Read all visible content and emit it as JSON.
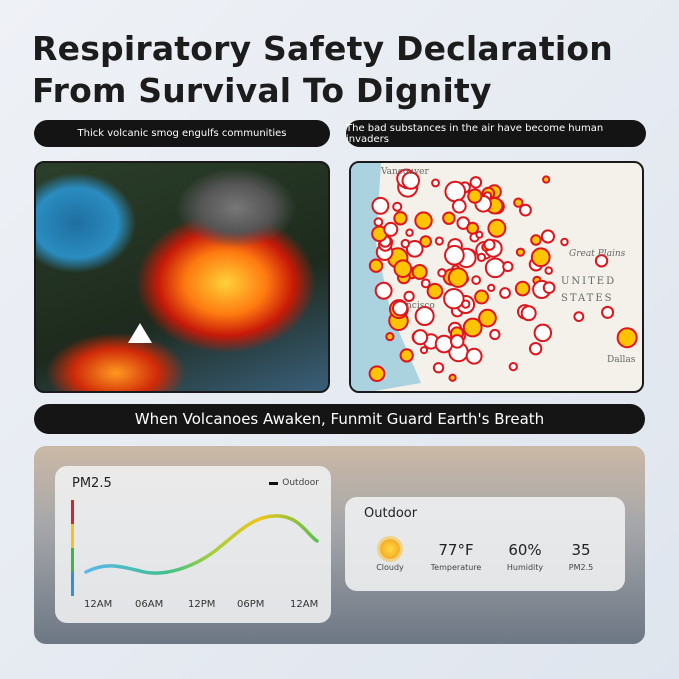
{
  "title": {
    "line1": "Respiratory Safety Declaration",
    "line2": "From Survival To Dignity"
  },
  "captions": {
    "left": "Thick volcanic smog engulfs communities",
    "right": "The bad substances in the air have become human invaders"
  },
  "map": {
    "labels": {
      "vancouver": "Vancouver",
      "great_plains": "Great Plains",
      "united": "UNITED",
      "states": "STATES",
      "francisco": "ncisco",
      "dallas": "Dallas"
    },
    "marker_color": "#e0141b"
  },
  "banner": "When Volcanoes Awaken, Funmit Guard Earth's Breath",
  "chart": {
    "title": "PM2.5",
    "legend": "Outdoor",
    "x_ticks": [
      "12AM",
      "06AM",
      "12PM",
      "06PM",
      "12AM"
    ],
    "scale_colors": [
      "#d8232a",
      "#f0c419",
      "#3cb54a",
      "#2f8fe0"
    ]
  },
  "outdoor": {
    "title": "Outdoor",
    "items": [
      {
        "value": "",
        "label": "Cloudy",
        "icon": "sun-icon"
      },
      {
        "value": "77°F",
        "label": "Temperature"
      },
      {
        "value": "60%",
        "label": "Humidity"
      },
      {
        "value": "35",
        "label": "PM2.5"
      }
    ]
  }
}
